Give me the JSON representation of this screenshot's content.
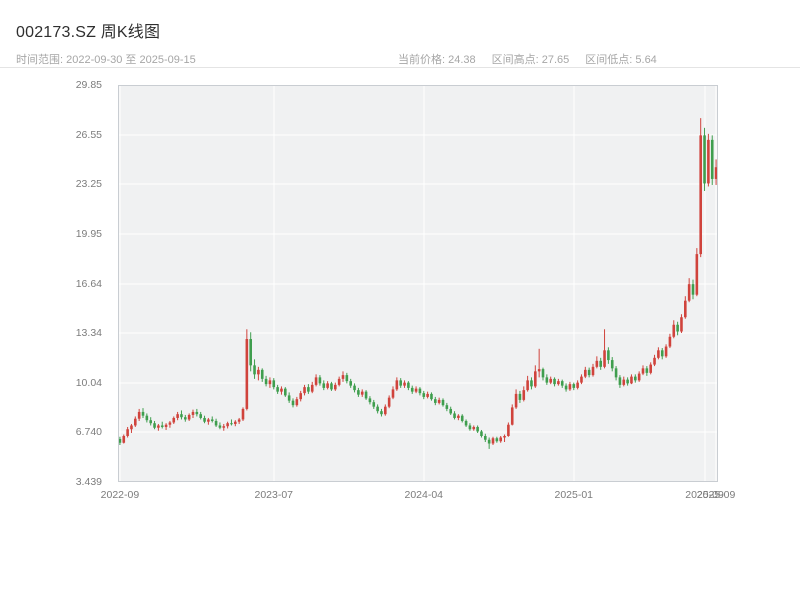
{
  "header": {
    "title": "002173.SZ 周K线图",
    "time_range": "时间范围: 2022-09-30 至 2025-09-15",
    "stats": [
      {
        "text": "当前价格: 24.38"
      },
      {
        "text": "区间高点: 27.65"
      },
      {
        "text": "区间低点: 5.64"
      }
    ]
  },
  "chart_data": {
    "type": "candlestick",
    "title": "002173.SZ 周K线图",
    "x_range": [
      "2022-09-30",
      "2025-09-15"
    ],
    "current_price": 24.38,
    "range_high": 27.65,
    "range_low": 5.64,
    "y_domain": [
      3.439,
      29.85
    ],
    "y_ticks": [
      "3.439",
      "6.740",
      "10.04",
      "13.34",
      "16.64",
      "19.95",
      "23.25",
      "26.55",
      "29.85"
    ],
    "x_ticks": [
      {
        "label": "2022-09",
        "index": 0
      },
      {
        "label": "2023-07",
        "index": 40
      },
      {
        "label": "2024-04",
        "index": 79
      },
      {
        "label": "2025-01",
        "index": 118
      },
      {
        "label": "2025-09",
        "index": 152
      },
      {
        "label": "2025-09",
        "index": 155
      }
    ],
    "colors": {
      "up": "#d0433c",
      "down": "#3f9e4e",
      "plot_bg": "#f0f1f2",
      "grid": "#ffffff"
    },
    "ohlc": [
      [
        6.3,
        6.45,
        5.9,
        6.05
      ],
      [
        6.05,
        6.6,
        6.0,
        6.5
      ],
      [
        6.5,
        7.1,
        6.4,
        6.95
      ],
      [
        6.95,
        7.3,
        6.7,
        7.2
      ],
      [
        7.2,
        7.8,
        7.1,
        7.65
      ],
      [
        7.65,
        8.3,
        7.5,
        8.1
      ],
      [
        8.1,
        8.35,
        7.7,
        7.85
      ],
      [
        7.85,
        8.0,
        7.4,
        7.55
      ],
      [
        7.55,
        7.75,
        7.2,
        7.35
      ],
      [
        7.35,
        7.5,
        6.95,
        7.05
      ],
      [
        7.05,
        7.3,
        6.85,
        7.2
      ],
      [
        7.2,
        7.45,
        7.0,
        7.1
      ],
      [
        7.1,
        7.35,
        6.9,
        7.25
      ],
      [
        7.25,
        7.5,
        7.05,
        7.4
      ],
      [
        7.4,
        7.8,
        7.3,
        7.7
      ],
      [
        7.7,
        8.1,
        7.55,
        7.95
      ],
      [
        7.95,
        8.2,
        7.6,
        7.75
      ],
      [
        7.75,
        7.9,
        7.45,
        7.6
      ],
      [
        7.6,
        8.0,
        7.5,
        7.9
      ],
      [
        7.9,
        8.25,
        7.7,
        8.1
      ],
      [
        8.1,
        8.3,
        7.8,
        7.95
      ],
      [
        7.95,
        8.1,
        7.6,
        7.7
      ],
      [
        7.7,
        7.85,
        7.35,
        7.45
      ],
      [
        7.45,
        7.7,
        7.25,
        7.6
      ],
      [
        7.6,
        7.8,
        7.4,
        7.5
      ],
      [
        7.5,
        7.65,
        7.1,
        7.2
      ],
      [
        7.2,
        7.4,
        6.95,
        7.05
      ],
      [
        7.05,
        7.3,
        6.85,
        7.15
      ],
      [
        7.15,
        7.45,
        7.0,
        7.35
      ],
      [
        7.35,
        7.6,
        7.2,
        7.3
      ],
      [
        7.3,
        7.55,
        7.15,
        7.45
      ],
      [
        7.45,
        7.7,
        7.3,
        7.6
      ],
      [
        7.6,
        8.4,
        7.5,
        8.3
      ],
      [
        8.3,
        13.6,
        8.2,
        12.95
      ],
      [
        12.95,
        13.4,
        10.8,
        11.2
      ],
      [
        11.2,
        11.6,
        10.3,
        10.6
      ],
      [
        10.6,
        11.1,
        10.2,
        10.9
      ],
      [
        10.9,
        11.0,
        10.1,
        10.3
      ],
      [
        10.3,
        10.5,
        9.8,
        9.95
      ],
      [
        9.95,
        10.4,
        9.7,
        10.2
      ],
      [
        10.2,
        10.35,
        9.6,
        9.75
      ],
      [
        9.75,
        9.9,
        9.3,
        9.45
      ],
      [
        9.45,
        9.8,
        9.25,
        9.65
      ],
      [
        9.65,
        9.75,
        9.1,
        9.2
      ],
      [
        9.2,
        9.4,
        8.7,
        8.85
      ],
      [
        8.85,
        9.0,
        8.4,
        8.55
      ],
      [
        8.55,
        9.1,
        8.45,
        8.95
      ],
      [
        8.95,
        9.5,
        8.8,
        9.35
      ],
      [
        9.35,
        9.9,
        9.2,
        9.75
      ],
      [
        9.75,
        9.95,
        9.3,
        9.45
      ],
      [
        9.45,
        10.1,
        9.35,
        9.9
      ],
      [
        9.9,
        10.6,
        9.8,
        10.4
      ],
      [
        10.4,
        10.55,
        9.85,
        10.0
      ],
      [
        10.0,
        10.2,
        9.55,
        9.7
      ],
      [
        9.7,
        10.15,
        9.6,
        10.0
      ],
      [
        10.0,
        10.1,
        9.5,
        9.6
      ],
      [
        9.6,
        10.05,
        9.5,
        9.9
      ],
      [
        9.9,
        10.45,
        9.8,
        10.3
      ],
      [
        10.3,
        10.8,
        10.1,
        10.55
      ],
      [
        10.55,
        10.7,
        10.0,
        10.15
      ],
      [
        10.15,
        10.3,
        9.7,
        9.85
      ],
      [
        9.85,
        10.0,
        9.4,
        9.55
      ],
      [
        9.55,
        9.7,
        9.1,
        9.25
      ],
      [
        9.25,
        9.6,
        9.1,
        9.45
      ],
      [
        9.45,
        9.55,
        8.9,
        9.0
      ],
      [
        9.0,
        9.15,
        8.6,
        8.75
      ],
      [
        8.75,
        8.9,
        8.3,
        8.45
      ],
      [
        8.45,
        8.6,
        8.0,
        8.15
      ],
      [
        8.15,
        8.3,
        7.8,
        7.95
      ],
      [
        7.95,
        8.6,
        7.85,
        8.45
      ],
      [
        8.45,
        9.2,
        8.35,
        9.05
      ],
      [
        9.05,
        9.8,
        8.95,
        9.6
      ],
      [
        9.6,
        10.4,
        9.5,
        10.2
      ],
      [
        10.2,
        10.35,
        9.7,
        9.85
      ],
      [
        9.85,
        10.2,
        9.7,
        10.05
      ],
      [
        10.05,
        10.15,
        9.55,
        9.7
      ],
      [
        9.7,
        9.85,
        9.3,
        9.45
      ],
      [
        9.45,
        9.8,
        9.35,
        9.65
      ],
      [
        9.65,
        9.75,
        9.2,
        9.35
      ],
      [
        9.35,
        9.5,
        8.95,
        9.1
      ],
      [
        9.1,
        9.45,
        9.0,
        9.3
      ],
      [
        9.3,
        9.4,
        8.85,
        8.95
      ],
      [
        8.95,
        9.1,
        8.55,
        8.7
      ],
      [
        8.7,
        9.05,
        8.6,
        8.9
      ],
      [
        8.9,
        9.0,
        8.45,
        8.55
      ],
      [
        8.55,
        8.7,
        8.15,
        8.3
      ],
      [
        8.3,
        8.45,
        7.9,
        8.0
      ],
      [
        8.0,
        8.15,
        7.6,
        7.7
      ],
      [
        7.7,
        7.95,
        7.55,
        7.85
      ],
      [
        7.85,
        7.95,
        7.4,
        7.5
      ],
      [
        7.5,
        7.6,
        7.1,
        7.2
      ],
      [
        7.2,
        7.35,
        6.85,
        6.95
      ],
      [
        6.95,
        7.2,
        6.85,
        7.1
      ],
      [
        7.1,
        7.2,
        6.7,
        6.8
      ],
      [
        6.8,
        6.9,
        6.4,
        6.5
      ],
      [
        6.5,
        6.65,
        6.1,
        6.25
      ],
      [
        6.25,
        6.4,
        5.64,
        6.0
      ],
      [
        6.0,
        6.45,
        5.9,
        6.35
      ],
      [
        6.35,
        6.45,
        6.05,
        6.15
      ],
      [
        6.15,
        6.5,
        6.05,
        6.4
      ],
      [
        6.4,
        6.6,
        6.1,
        6.5
      ],
      [
        6.5,
        7.4,
        6.45,
        7.25
      ],
      [
        7.25,
        8.6,
        7.2,
        8.4
      ],
      [
        8.4,
        9.6,
        8.3,
        9.3
      ],
      [
        9.3,
        9.5,
        8.7,
        8.9
      ],
      [
        8.9,
        9.8,
        8.8,
        9.55
      ],
      [
        9.55,
        10.5,
        9.45,
        10.2
      ],
      [
        10.2,
        10.4,
        9.6,
        9.8
      ],
      [
        9.8,
        11.2,
        9.7,
        10.8
      ],
      [
        10.8,
        12.3,
        10.4,
        10.95
      ],
      [
        10.95,
        11.05,
        10.2,
        10.4
      ],
      [
        10.4,
        10.6,
        9.9,
        10.05
      ],
      [
        10.05,
        10.45,
        9.95,
        10.3
      ],
      [
        10.3,
        10.4,
        9.8,
        9.95
      ],
      [
        9.95,
        10.3,
        9.85,
        10.15
      ],
      [
        10.15,
        10.25,
        9.7,
        9.85
      ],
      [
        9.85,
        10.0,
        9.45,
        9.6
      ],
      [
        9.6,
        10.1,
        9.5,
        9.95
      ],
      [
        9.95,
        10.05,
        9.55,
        9.7
      ],
      [
        9.7,
        10.2,
        9.6,
        10.05
      ],
      [
        10.05,
        10.6,
        9.95,
        10.45
      ],
      [
        10.45,
        11.1,
        10.35,
        10.9
      ],
      [
        10.9,
        11.05,
        10.4,
        10.55
      ],
      [
        10.55,
        11.3,
        10.45,
        11.1
      ],
      [
        11.1,
        11.8,
        11.0,
        11.5
      ],
      [
        11.5,
        11.7,
        10.9,
        11.1
      ],
      [
        11.1,
        13.6,
        11.0,
        12.2
      ],
      [
        12.2,
        12.4,
        11.3,
        11.55
      ],
      [
        11.55,
        11.75,
        10.8,
        11.0
      ],
      [
        11.0,
        11.15,
        10.2,
        10.4
      ],
      [
        10.4,
        10.55,
        9.7,
        9.9
      ],
      [
        9.9,
        10.45,
        9.8,
        10.25
      ],
      [
        10.25,
        10.4,
        9.85,
        10.0
      ],
      [
        10.0,
        10.6,
        9.95,
        10.45
      ],
      [
        10.45,
        10.6,
        10.05,
        10.2
      ],
      [
        10.2,
        10.8,
        10.1,
        10.65
      ],
      [
        10.65,
        11.2,
        10.55,
        11.0
      ],
      [
        11.0,
        11.15,
        10.5,
        10.7
      ],
      [
        10.7,
        11.4,
        10.6,
        11.25
      ],
      [
        11.25,
        11.9,
        11.15,
        11.7
      ],
      [
        11.7,
        12.4,
        11.6,
        12.2
      ],
      [
        12.2,
        12.35,
        11.6,
        11.8
      ],
      [
        11.8,
        12.6,
        11.7,
        12.45
      ],
      [
        12.45,
        13.3,
        12.35,
        13.1
      ],
      [
        13.1,
        14.2,
        13.0,
        13.9
      ],
      [
        13.9,
        14.1,
        13.2,
        13.45
      ],
      [
        13.45,
        14.6,
        13.35,
        14.4
      ],
      [
        14.4,
        15.8,
        14.3,
        15.5
      ],
      [
        15.5,
        17.0,
        15.4,
        16.6
      ],
      [
        16.6,
        16.9,
        15.6,
        15.9
      ],
      [
        15.9,
        19.0,
        15.8,
        18.6
      ],
      [
        18.6,
        27.65,
        18.4,
        26.5
      ],
      [
        26.5,
        27.0,
        22.8,
        23.3
      ],
      [
        23.3,
        26.6,
        23.1,
        26.2
      ],
      [
        26.2,
        26.5,
        23.2,
        23.6
      ],
      [
        23.6,
        24.9,
        23.2,
        24.38
      ]
    ]
  }
}
